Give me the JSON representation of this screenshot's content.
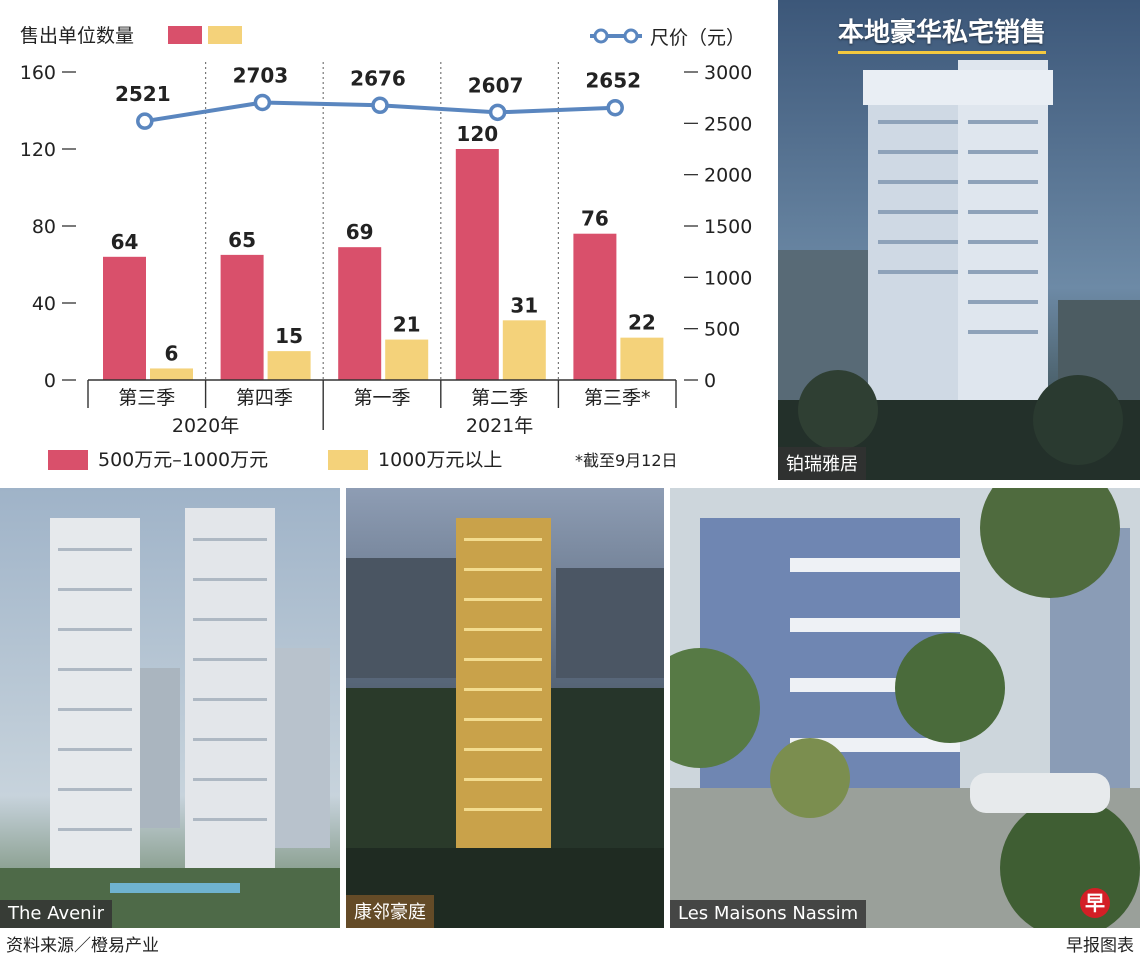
{
  "chart_data": {
    "type": "bar",
    "categories": [
      "第三季",
      "第四季",
      "第一季",
      "第二季",
      "第三季*"
    ],
    "year_groups": [
      {
        "label": "2020年",
        "span": [
          0,
          1
        ]
      },
      {
        "label": "2021年",
        "span": [
          2,
          4
        ]
      }
    ],
    "series": [
      {
        "name": "500万元–1000万元",
        "values": [
          64,
          65,
          69,
          120,
          76
        ],
        "color": "#d9506b"
      },
      {
        "name": "1000万元以上",
        "values": [
          6,
          15,
          21,
          31,
          22
        ],
        "color": "#f4d27a"
      }
    ],
    "line_series": {
      "name": "尺价（元）",
      "values": [
        2521,
        2703,
        2676,
        2607,
        2652
      ],
      "color": "#5a86bf"
    },
    "ylabel": "售出单位数量",
    "left_axis": {
      "ticks": [
        0,
        40,
        80,
        120,
        160
      ],
      "ylim": [
        0,
        160
      ]
    },
    "right_axis": {
      "ticks": [
        0,
        500,
        1000,
        1500,
        2000,
        2500,
        3000
      ],
      "ylim": [
        0,
        3000
      ]
    },
    "footnote": "*截至9月12日"
  },
  "photos": {
    "title": "本地豪华私宅销售",
    "items": [
      {
        "caption": "铂瑞雅居"
      },
      {
        "caption": "The Avenir"
      },
      {
        "caption": "康邻豪庭"
      },
      {
        "caption": "Les Maisons Nassim"
      }
    ]
  },
  "footer": {
    "source": "资料来源／橙易产业",
    "credit": "早报图表",
    "brand_glyph": "早"
  }
}
